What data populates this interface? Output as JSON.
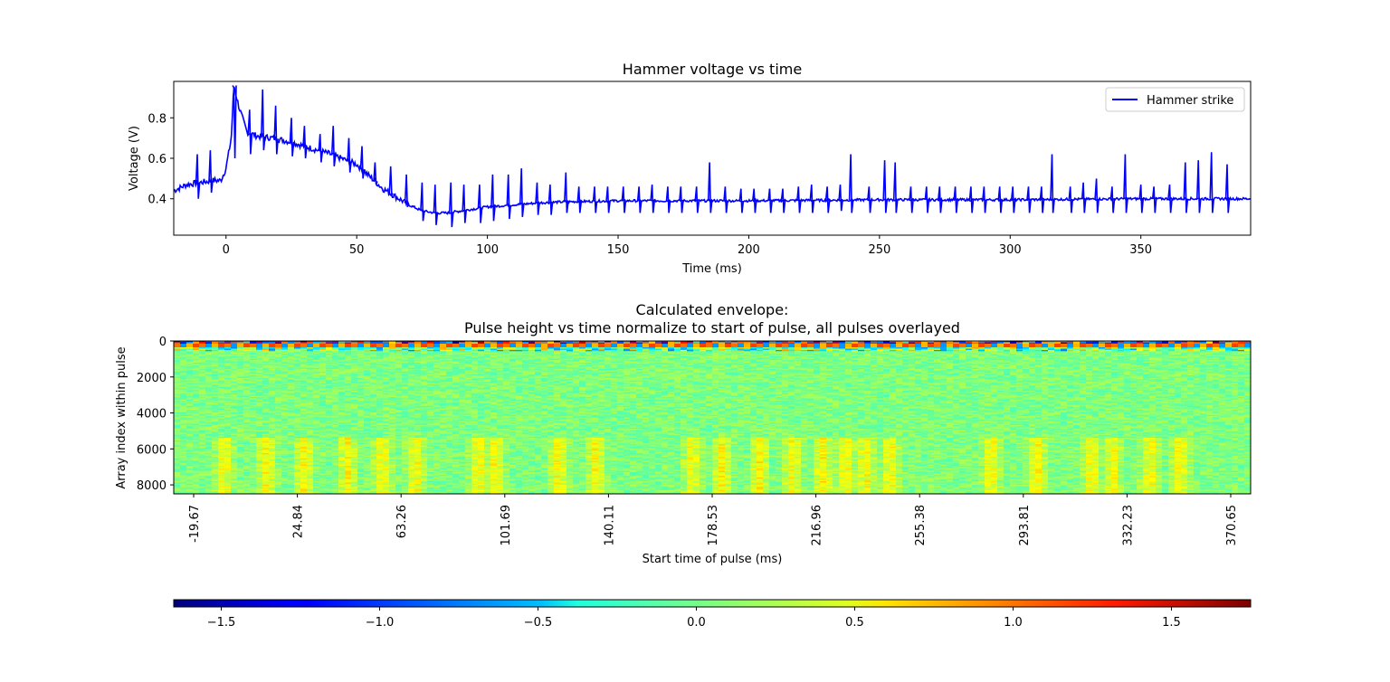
{
  "chart_data": [
    {
      "type": "line",
      "title": "Hammer voltage vs time",
      "xlabel": "Time (ms)",
      "ylabel": "Voltage (V)",
      "xlim": [
        -20,
        392
      ],
      "ylim": [
        0.22,
        0.98
      ],
      "xticks": [
        0,
        50,
        100,
        150,
        200,
        250,
        300,
        350
      ],
      "yticks": [
        0.4,
        0.6,
        0.8
      ],
      "grid": false,
      "legend": "top-right",
      "series": [
        {
          "name": "Hammer strike",
          "color": "#0000ff",
          "baseline": {
            "x": [
              -20,
              -15,
              -10,
              -5,
              -2,
              0,
              2,
              3,
              5,
              8,
              12,
              18,
              25,
              30,
              40,
              50,
              55,
              60,
              65,
              70,
              75,
              80,
              85,
              90,
              95,
              100,
              110,
              120,
              130,
              150,
              200,
              250,
              300,
              350,
              392
            ],
            "y": [
              0.44,
              0.47,
              0.48,
              0.49,
              0.49,
              0.55,
              0.7,
              0.96,
              0.85,
              0.73,
              0.71,
              0.7,
              0.68,
              0.66,
              0.62,
              0.57,
              0.51,
              0.45,
              0.41,
              0.37,
              0.34,
              0.33,
              0.33,
              0.34,
              0.35,
              0.36,
              0.37,
              0.38,
              0.385,
              0.39,
              0.39,
              0.395,
              0.395,
              0.4,
              0.4
            ]
          },
          "spikes": {
            "x": [
              -11,
              -6,
              3,
              9,
              14,
              19,
              25,
              30,
              36,
              41,
              47,
              52,
              57,
              63,
              69,
              75,
              80,
              86,
              91,
              97,
              102,
              108,
              113,
              119,
              124,
              130,
              135,
              141,
              146,
              152,
              158,
              163,
              169,
              174,
              180,
              185,
              191,
              197,
              202,
              208,
              213,
              219,
              224,
              230,
              235,
              239,
              246,
              252,
              256,
              262,
              268,
              273,
              279,
              285,
              290,
              296,
              301,
              307,
              312,
              316,
              323,
              328,
              333,
              339,
              344,
              350,
              355,
              361,
              367,
              372,
              377,
              383
            ],
            "up": [
              0.62,
              0.64,
              0.95,
              0.84,
              0.94,
              0.86,
              0.8,
              0.76,
              0.72,
              0.76,
              0.7,
              0.66,
              0.58,
              0.56,
              0.52,
              0.48,
              0.47,
              0.48,
              0.47,
              0.47,
              0.52,
              0.52,
              0.55,
              0.48,
              0.47,
              0.53,
              0.46,
              0.46,
              0.46,
              0.46,
              0.46,
              0.47,
              0.46,
              0.46,
              0.46,
              0.58,
              0.46,
              0.45,
              0.45,
              0.45,
              0.45,
              0.46,
              0.47,
              0.46,
              0.47,
              0.62,
              0.46,
              0.59,
              0.58,
              0.46,
              0.46,
              0.46,
              0.46,
              0.46,
              0.46,
              0.46,
              0.46,
              0.46,
              0.46,
              0.62,
              0.46,
              0.48,
              0.5,
              0.46,
              0.62,
              0.47,
              0.46,
              0.47,
              0.58,
              0.59,
              0.63,
              0.57
            ],
            "down": [
              0.4,
              0.43,
              0.6,
              0.62,
              0.64,
              0.62,
              0.61,
              0.6,
              0.58,
              0.56,
              0.53,
              0.5,
              0.47,
              0.42,
              0.36,
              0.29,
              0.27,
              0.26,
              0.28,
              0.28,
              0.29,
              0.3,
              0.31,
              0.32,
              0.32,
              0.33,
              0.33,
              0.33,
              0.33,
              0.33,
              0.33,
              0.33,
              0.33,
              0.33,
              0.33,
              0.33,
              0.33,
              0.33,
              0.33,
              0.33,
              0.33,
              0.33,
              0.33,
              0.33,
              0.34,
              0.33,
              0.33,
              0.33,
              0.33,
              0.33,
              0.33,
              0.33,
              0.33,
              0.33,
              0.33,
              0.33,
              0.33,
              0.33,
              0.33,
              0.33,
              0.33,
              0.33,
              0.33,
              0.33,
              0.33,
              0.33,
              0.33,
              0.33,
              0.33,
              0.33,
              0.33,
              0.33
            ]
          }
        }
      ]
    },
    {
      "type": "heatmap",
      "title": "Calculated envelope:\nPulse height vs time normalize to start of pulse, all pulses overlayed",
      "title_lines": [
        "Calculated envelope:",
        "Pulse height vs time normalize to start of pulse, all pulses overlayed"
      ],
      "xlabel": "Start time of pulse (ms)",
      "ylabel": "Array index within pulse",
      "xtick_labels": [
        "-19.67",
        "24.84",
        "63.26",
        "101.69",
        "140.11",
        "178.53",
        "216.96",
        "255.38",
        "293.81",
        "332.23",
        "370.65"
      ],
      "ytick_labels": [
        "0",
        "2000",
        "4000",
        "6000",
        "8000"
      ],
      "yticks": [
        0,
        2000,
        4000,
        6000,
        8000
      ],
      "ylim": [
        8500,
        0
      ],
      "xlim": [
        -28,
        400
      ],
      "colormap": "jet",
      "colorbar": {
        "orientation": "horizontal",
        "vmin": -1.65,
        "vmax": 1.75,
        "ticks": [
          -1.5,
          -1.0,
          -0.5,
          0.0,
          0.5,
          1.0,
          1.5
        ],
        "tick_labels": [
          "−1.5",
          "−1.0",
          "−0.5",
          "0.0",
          "0.5",
          "1.0",
          "1.5"
        ]
      },
      "features": {
        "background_value": 0.05,
        "top_band_values": [
          1.4,
          1.2,
          -0.9,
          0.9
        ],
        "bright_columns_ms": [
          -8,
          9,
          24,
          41,
          55,
          68,
          93,
          100,
          125,
          140,
          178,
          190,
          205,
          218,
          230,
          239,
          247,
          257,
          297,
          315,
          337,
          345,
          360,
          372
        ],
        "bright_columns_value": 0.45,
        "bright_columns_start_index": 5400
      }
    }
  ]
}
